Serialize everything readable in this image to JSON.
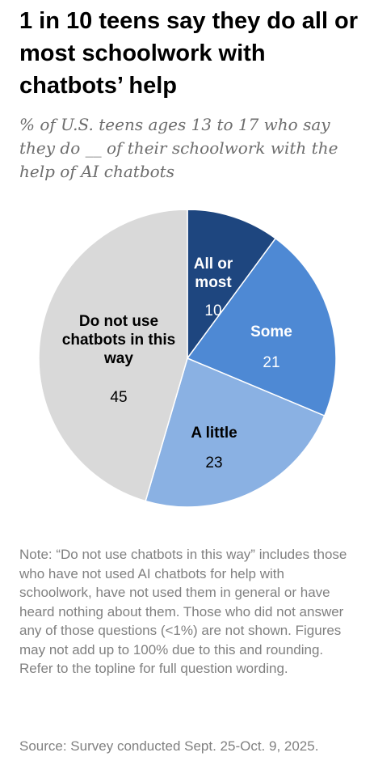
{
  "chart_data": {
    "type": "pie",
    "title": "1 in 10 teens say they do all or most schoolwork with chatbots’ help",
    "subtitle": "% of U.S. teens ages 13 to 17 who say they do __ of their schoolwork with the help of AI chatbots",
    "slices": [
      {
        "label": "All or most",
        "label_lines": [
          "All or",
          "most"
        ],
        "value": 10,
        "value_text": "10",
        "color": "#1e467f",
        "label_color": "#ffffff"
      },
      {
        "label": "Some",
        "label_lines": [
          "Some"
        ],
        "value": 21,
        "value_text": "21",
        "color": "#4e89d4",
        "label_color": "#ffffff"
      },
      {
        "label": "A little",
        "label_lines": [
          "A little"
        ],
        "value": 23,
        "value_text": "23",
        "color": "#8ab1e3",
        "label_color": "#000000"
      },
      {
        "label": "Do not use chatbots in this way",
        "label_lines": [
          "Do not use",
          "chatbots in this",
          "way"
        ],
        "value": 45,
        "value_text": "45",
        "color": "#d9d9d9",
        "label_color": "#000000"
      }
    ]
  },
  "note": "Note: “Do not use chatbots in this way” includes those who have not used AI chatbots for help with schoolwork, have not used them in general or have heard nothing about them. Those who did not answer any of those questions (<1%) are not shown. Figures may not add up to 100% due to this and rounding. Refer to the topline for full question wording.",
  "source": "Source: Survey conducted Sept. 25-Oct. 9, 2025."
}
